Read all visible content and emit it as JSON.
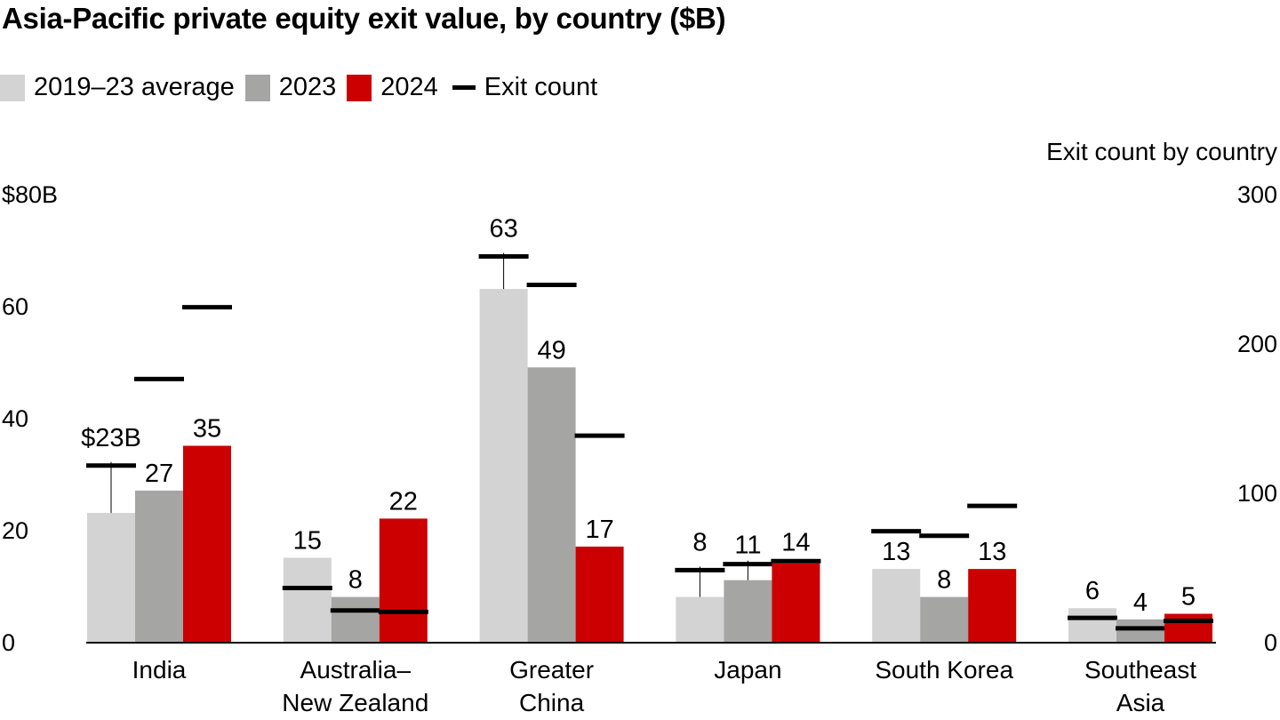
{
  "title": "Asia-Pacific private equity exit value, by country ($B)",
  "chart_data": {
    "type": "bar",
    "title": "Asia-Pacific private equity exit value, by country ($B)",
    "categories": [
      [
        "India"
      ],
      [
        "Australia–",
        "New Zealand"
      ],
      [
        "Greater",
        "China"
      ],
      [
        "Japan"
      ],
      [
        "South Korea"
      ],
      [
        "Southeast",
        "Asia"
      ]
    ],
    "series": [
      {
        "name": "2019–23 average",
        "color": "#d3d3d3",
        "values": [
          23,
          15,
          63,
          8,
          13,
          6
        ],
        "labels": [
          "$23B",
          "15",
          "63",
          "8",
          "13",
          "6"
        ],
        "exit_count": [
          118,
          36,
          258,
          48,
          74,
          16
        ],
        "label_above_line": [
          true,
          false,
          true,
          true,
          false,
          false
        ]
      },
      {
        "name": "2023",
        "color": "#a5a5a4",
        "values": [
          27,
          8,
          49,
          11,
          8,
          4
        ],
        "labels": [
          "27",
          "8",
          "49",
          "11",
          "8",
          "4"
        ],
        "exit_count": [
          176,
          21,
          239,
          52,
          71,
          9
        ],
        "label_above_line": [
          false,
          false,
          false,
          true,
          false,
          false
        ]
      },
      {
        "name": "2024",
        "color": "#cc0000",
        "values": [
          35,
          22,
          17,
          14,
          13,
          5
        ],
        "labels": [
          "35",
          "22",
          "17",
          "14",
          "13",
          "5"
        ],
        "exit_count": [
          224,
          20,
          138,
          54,
          91,
          14
        ],
        "label_above_line": [
          false,
          false,
          false,
          true,
          false,
          false
        ]
      }
    ],
    "exit_count_legend": "Exit count",
    "ylabel_right": "Exit count by country",
    "ylim": [
      0,
      80
    ],
    "yticks": [
      "0",
      "20",
      "40",
      "60",
      "$80B"
    ],
    "ylim_right": [
      0,
      300
    ],
    "yticks_right": [
      "0",
      "100",
      "200",
      "300"
    ],
    "legend_position": "top-left"
  }
}
